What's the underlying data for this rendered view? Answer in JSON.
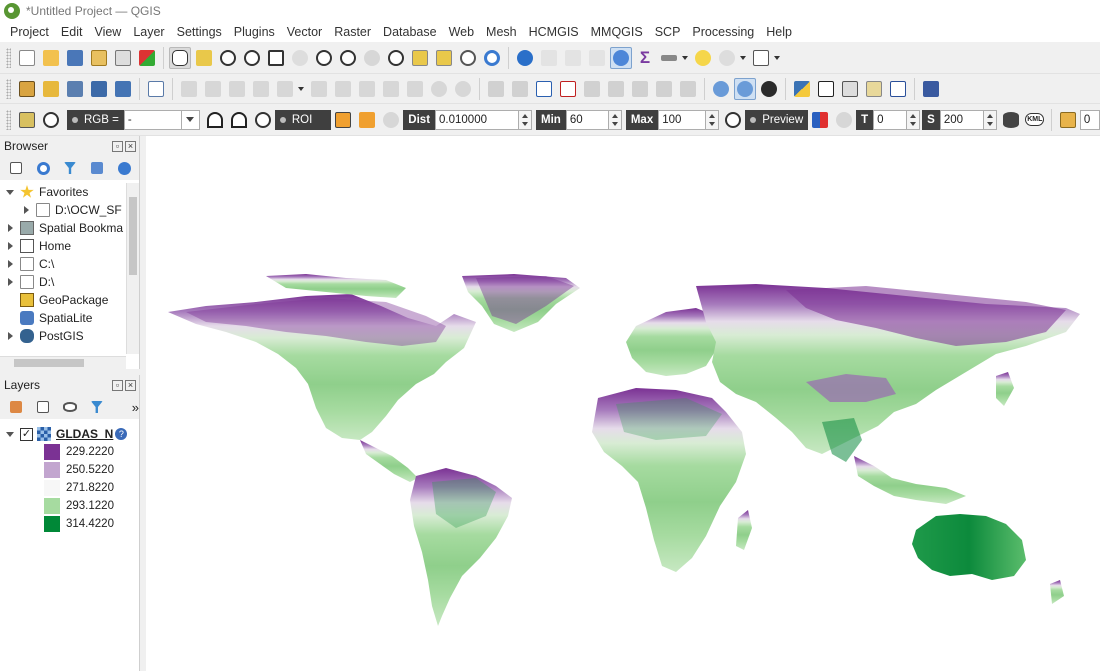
{
  "window": {
    "title": "*Untitled Project — QGIS"
  },
  "menubar": {
    "items": [
      "Project",
      "Edit",
      "View",
      "Layer",
      "Settings",
      "Plugins",
      "Vector",
      "Raster",
      "Database",
      "Web",
      "Mesh",
      "HCMGIS",
      "MMQGIS",
      "SCP",
      "Processing",
      "Help"
    ]
  },
  "scp_toolbar": {
    "rgb_label": "RGB =",
    "rgb_value": "-",
    "roi_label": "ROI",
    "dist_label": "Dist",
    "dist_value": "0.010000",
    "min_label": "Min",
    "min_value": "60",
    "max_label": "Max",
    "max_value": "100",
    "preview_label": "Preview",
    "t_label": "T",
    "t_value": "0",
    "s_label": "S",
    "s_value": "200",
    "trailing_value": "0",
    "kml_label": "KML"
  },
  "browser": {
    "title": "Browser",
    "items": [
      {
        "label": "Favorites",
        "level": 0,
        "expander": "open",
        "icon": "star-icon"
      },
      {
        "label": "D:\\OCW_SF",
        "level": 1,
        "expander": "closed",
        "icon": "folder-icon"
      },
      {
        "label": "Spatial Bookma",
        "level": 0,
        "expander": "closed",
        "icon": "bookmark-icon"
      },
      {
        "label": "Home",
        "level": 0,
        "expander": "closed",
        "icon": "home-icon"
      },
      {
        "label": "C:\\",
        "level": 0,
        "expander": "closed",
        "icon": "folder-icon"
      },
      {
        "label": "D:\\",
        "level": 0,
        "expander": "closed",
        "icon": "folder-icon"
      },
      {
        "label": "GeoPackage",
        "level": 0,
        "expander": "none",
        "icon": "geopackage-icon"
      },
      {
        "label": "SpatiaLite",
        "level": 0,
        "expander": "none",
        "icon": "spatialite-icon"
      },
      {
        "label": "PostGIS",
        "level": 0,
        "expander": "closed",
        "icon": "postgis-icon"
      }
    ]
  },
  "layers": {
    "title": "Layers",
    "layer_name": "GLDAS_N",
    "legend": [
      {
        "value": "229.2220",
        "color": "#7b3294"
      },
      {
        "value": "250.5220",
        "color": "#c2a5cf"
      },
      {
        "value": "271.8220",
        "color": "#f7f7f7"
      },
      {
        "value": "293.1220",
        "color": "#a6dba0"
      },
      {
        "value": "314.4220",
        "color": "#008837"
      }
    ]
  },
  "colors": {
    "accent": "#589632",
    "active_tool": "#cfe0f3"
  }
}
